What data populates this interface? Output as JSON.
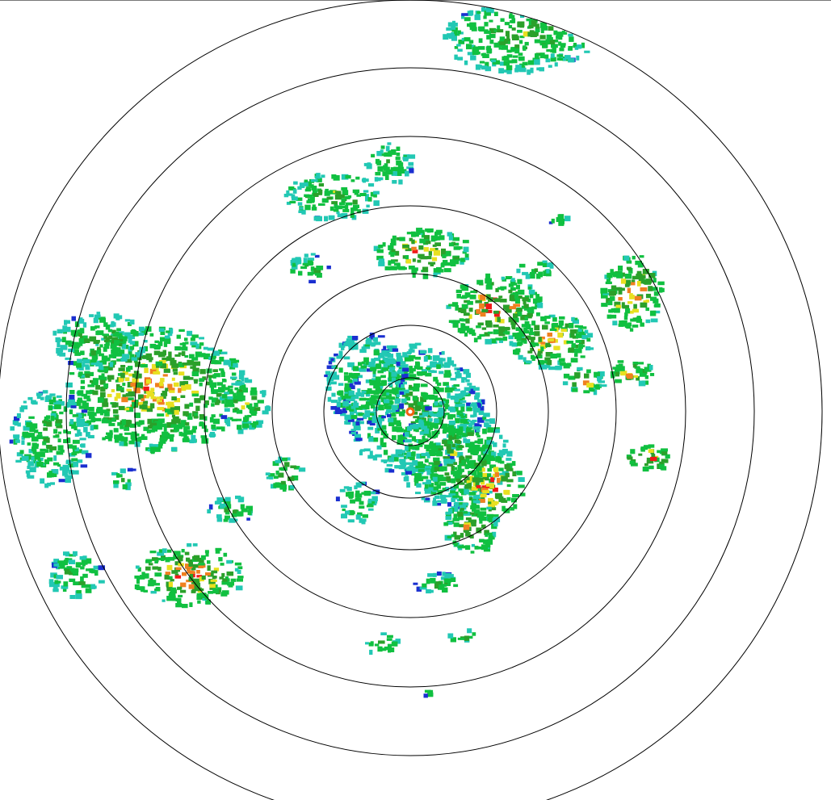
{
  "radar": {
    "product": "reflectivity",
    "colors": {
      "weak": "#1a2fd0",
      "light": "#22c8b4",
      "moderate": "#10c040",
      "dark_green": "#2aa02a",
      "yellow": "#e8e020",
      "orange": "#f08020",
      "heavy": "#f01818",
      "range_ring": "#000000",
      "background": "#ffffff"
    },
    "range_ring_count": 7
  }
}
